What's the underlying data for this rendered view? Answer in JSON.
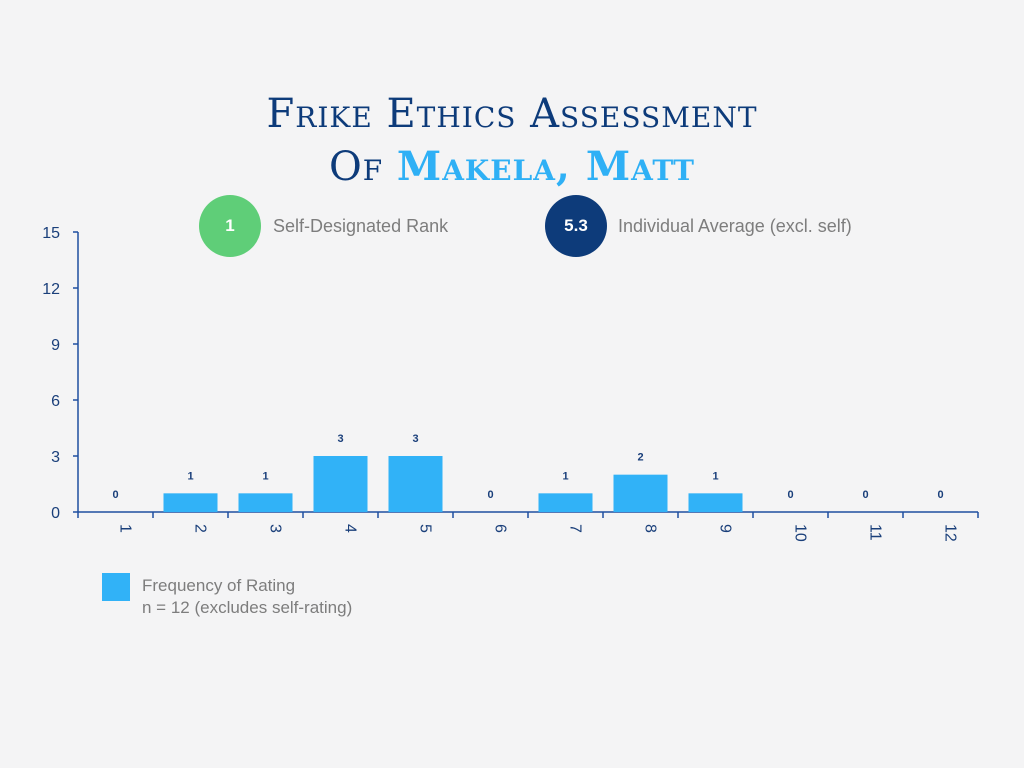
{
  "title": {
    "line1": "Frike Ethics Assessment",
    "line2_prefix": "Of",
    "line2_name": "Makela, Matt"
  },
  "stats": {
    "self_rank": {
      "value": "1",
      "label": "Self-Designated Rank",
      "color": "#5fce78"
    },
    "individual_avg": {
      "value": "5.3",
      "label": "Individual Average (excl. self)",
      "color": "#0d3b7a"
    }
  },
  "legend": {
    "label": "Frequency of Rating",
    "note": "n = 12 (excludes self-rating)",
    "color": "#31b2f7"
  },
  "chart_data": {
    "type": "bar",
    "categories": [
      "1",
      "2",
      "3",
      "4",
      "5",
      "6",
      "7",
      "8",
      "9",
      "10",
      "11",
      "12"
    ],
    "series": [
      {
        "name": "Frequency of Rating",
        "values": [
          0,
          1,
          1,
          3,
          3,
          0,
          1,
          2,
          1,
          0,
          0,
          0
        ]
      }
    ],
    "ylim": [
      0,
      15
    ],
    "yticks": [
      0,
      3,
      6,
      9,
      12,
      15
    ],
    "grid": false,
    "legend_position": "bottom-left",
    "bar_color": "#31b2f7",
    "axis_color": "#1e4fa0"
  }
}
